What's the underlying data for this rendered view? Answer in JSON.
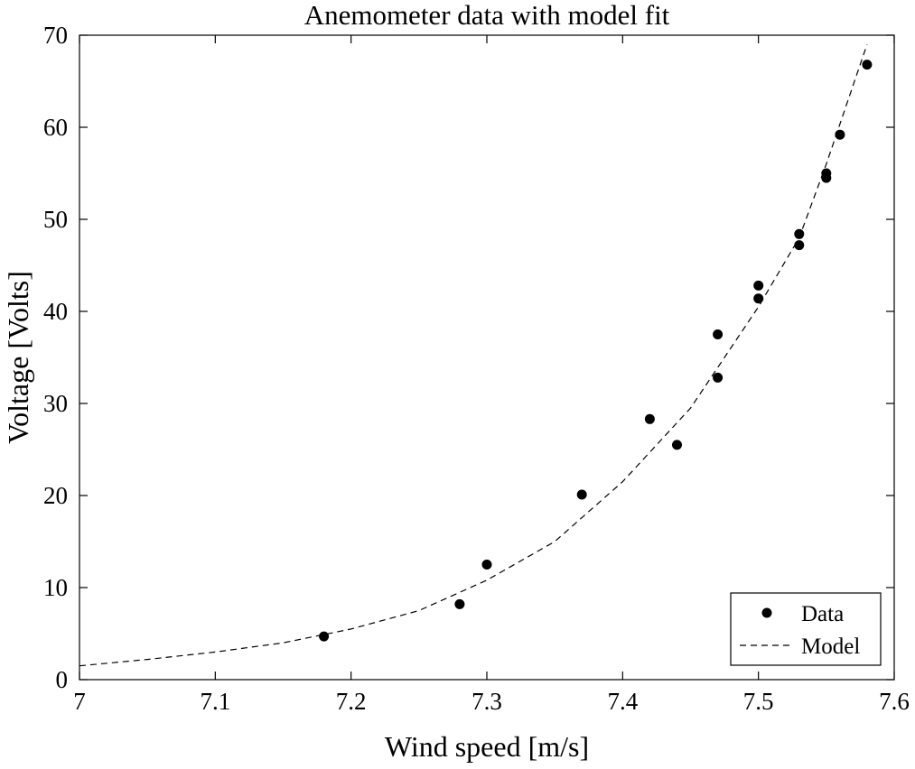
{
  "chart_data": {
    "type": "scatter",
    "title": "Anemometer data with model fit",
    "xlabel": "Wind speed [m/s]",
    "ylabel": "Voltage [Volts]",
    "xlim": [
      7,
      7.6
    ],
    "ylim": [
      0,
      70
    ],
    "x_ticks": [
      "7",
      "7.1",
      "7.2",
      "7.3",
      "7.4",
      "7.5",
      "7.6"
    ],
    "y_ticks": [
      "0",
      "10",
      "20",
      "30",
      "40",
      "50",
      "60",
      "70"
    ],
    "grid": false,
    "legend_position": "bottom-right",
    "series": [
      {
        "name": "Data",
        "style": "markers",
        "color": "#000000",
        "points": [
          {
            "x": 7.18,
            "y": 4.7
          },
          {
            "x": 7.28,
            "y": 8.2
          },
          {
            "x": 7.3,
            "y": 12.5
          },
          {
            "x": 7.37,
            "y": 20.1
          },
          {
            "x": 7.42,
            "y": 28.3
          },
          {
            "x": 7.44,
            "y": 25.5
          },
          {
            "x": 7.47,
            "y": 37.5
          },
          {
            "x": 7.47,
            "y": 32.8
          },
          {
            "x": 7.5,
            "y": 42.8
          },
          {
            "x": 7.5,
            "y": 41.4
          },
          {
            "x": 7.53,
            "y": 48.4
          },
          {
            "x": 7.53,
            "y": 47.2
          },
          {
            "x": 7.55,
            "y": 55.0
          },
          {
            "x": 7.55,
            "y": 54.5
          },
          {
            "x": 7.56,
            "y": 59.2
          },
          {
            "x": 7.58,
            "y": 66.8
          }
        ]
      },
      {
        "name": "Model",
        "style": "dashed-line",
        "color": "#000000",
        "points": [
          {
            "x": 7.0,
            "y": 1.5
          },
          {
            "x": 7.05,
            "y": 2.2
          },
          {
            "x": 7.1,
            "y": 3.0
          },
          {
            "x": 7.15,
            "y": 4.0
          },
          {
            "x": 7.2,
            "y": 5.5
          },
          {
            "x": 7.25,
            "y": 7.5
          },
          {
            "x": 7.3,
            "y": 10.8
          },
          {
            "x": 7.35,
            "y": 15.0
          },
          {
            "x": 7.4,
            "y": 21.5
          },
          {
            "x": 7.45,
            "y": 29.5
          },
          {
            "x": 7.5,
            "y": 40.5
          },
          {
            "x": 7.53,
            "y": 48.0
          },
          {
            "x": 7.55,
            "y": 56.0
          },
          {
            "x": 7.58,
            "y": 69.0
          }
        ]
      }
    ]
  }
}
